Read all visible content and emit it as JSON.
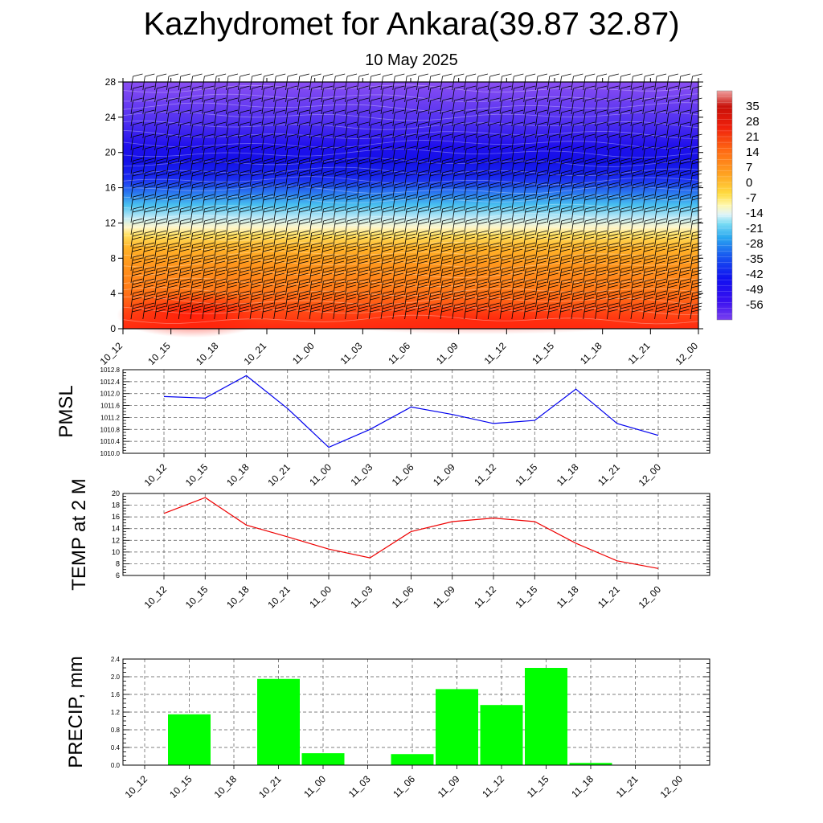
{
  "title": "Kazhydromet for Ankara(39.87 32.87)",
  "subtitle": "10 May 2025",
  "chart_data": [
    {
      "type": "heatmap",
      "title": "",
      "x_categories": [
        "10_12",
        "10_15",
        "10_18",
        "10_21",
        "11_00",
        "11_03",
        "11_06",
        "11_09",
        "11_12",
        "11_15",
        "11_18",
        "11_21",
        "12_00"
      ],
      "y_ticks": [
        0,
        4,
        8,
        12,
        16,
        20,
        24,
        28
      ],
      "ylim": [
        0,
        28
      ],
      "colorbar": {
        "labels": [
          "35",
          "28",
          "21",
          "14",
          "7",
          "0",
          "-7",
          "-14",
          "-21",
          "-28",
          "-35",
          "-42",
          "-49",
          "-56"
        ],
        "range": [
          -63,
          42
        ]
      },
      "overlay": "wind barbs",
      "colors": {
        "warm": "#ff2a10",
        "orange": "#ff9a1a",
        "yellow": "#ffee60",
        "cyan": "#3ec2f0",
        "blue": "#1a22f0",
        "violet": "#8a4ef0"
      }
    },
    {
      "type": "line",
      "ylabel": "PMSL",
      "categories": [
        "10_12",
        "10_15",
        "10_18",
        "10_21",
        "11_00",
        "11_03",
        "11_06",
        "11_09",
        "11_12",
        "11_15",
        "11_18",
        "11_21",
        "12_00"
      ],
      "values": [
        1011.9,
        1011.85,
        1012.6,
        1011.5,
        1010.2,
        1010.8,
        1011.55,
        1011.3,
        1011.0,
        1011.1,
        1012.15,
        1011.0,
        1010.6
      ],
      "y_ticks": [
        "1010.0",
        "1010.4",
        "1010.8",
        "1011.2",
        "1011.6",
        "1012.0",
        "1012.4",
        "1012.8"
      ],
      "ylim": [
        1010.0,
        1012.8
      ],
      "color": "#0000ee"
    },
    {
      "type": "line",
      "ylabel": "TEMP at 2 M",
      "categories": [
        "10_12",
        "10_15",
        "10_18",
        "10_21",
        "11_00",
        "11_03",
        "11_06",
        "11_09",
        "11_12",
        "11_15",
        "11_18",
        "11_21",
        "12_00"
      ],
      "values": [
        16.6,
        19.3,
        14.6,
        12.6,
        10.5,
        9.0,
        13.5,
        15.2,
        15.8,
        15.2,
        11.5,
        8.5,
        7.2
      ],
      "y_ticks": [
        "6",
        "8",
        "10",
        "12",
        "14",
        "16",
        "18",
        "20"
      ],
      "ylim": [
        6,
        20
      ],
      "color": "#ee0000"
    },
    {
      "type": "bar",
      "ylabel": "PRECIP, mm",
      "categories": [
        "10_12",
        "10_15",
        "10_18",
        "10_21",
        "11_00",
        "11_03",
        "11_06",
        "11_09",
        "11_12",
        "11_15",
        "11_18",
        "11_21",
        "12_00"
      ],
      "values": [
        0,
        1.15,
        0,
        1.95,
        0.27,
        0,
        0.25,
        1.72,
        1.36,
        2.2,
        0.05,
        0,
        0
      ],
      "y_ticks": [
        "0.0",
        "0.4",
        "0.8",
        "1.2",
        "1.6",
        "2.0",
        "2.4"
      ],
      "ylim": [
        0,
        2.4
      ],
      "color": "#00ff00"
    }
  ]
}
